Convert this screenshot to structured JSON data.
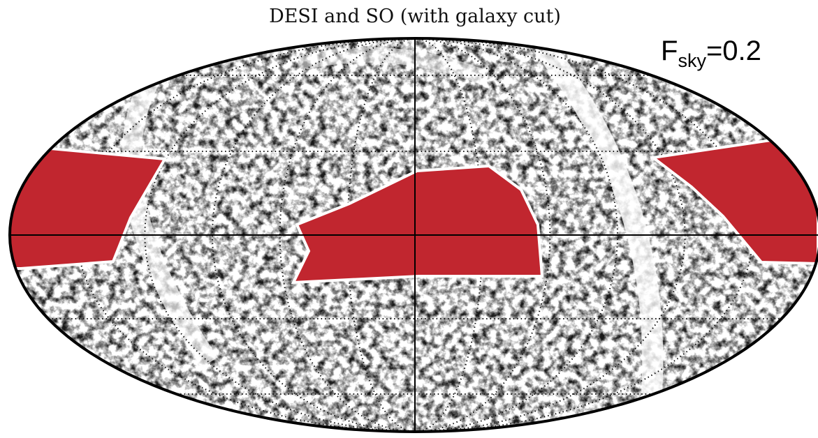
{
  "title": "DESI and SO (with galaxy cut)",
  "annotation": {
    "symbol": "F",
    "subscript": "sky",
    "rest": "=0.2"
  }
}
